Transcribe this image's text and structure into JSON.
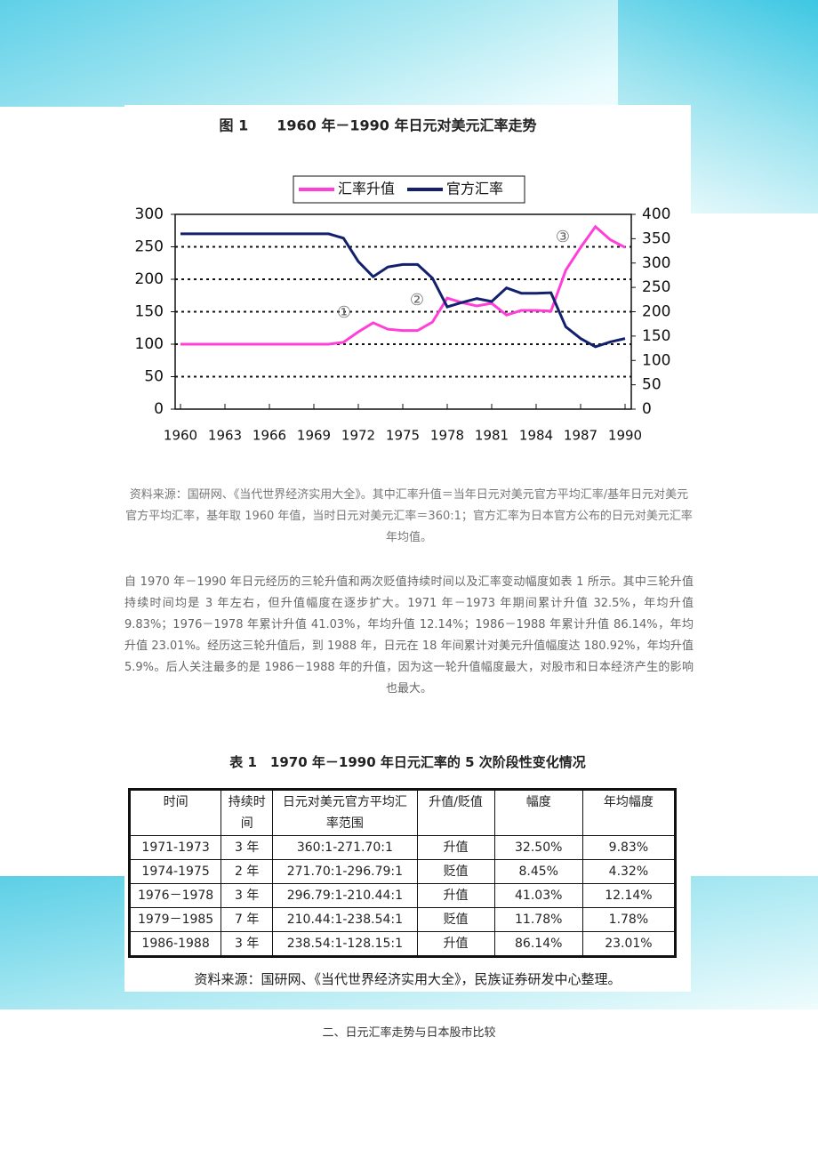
{
  "chart_data": {
    "type": "line",
    "title": "图 1　　1960 年－1990 年日元对美元汇率走势",
    "x": [
      1960,
      1961,
      1962,
      1963,
      1964,
      1965,
      1966,
      1967,
      1968,
      1969,
      1970,
      1971,
      1972,
      1973,
      1974,
      1975,
      1976,
      1977,
      1978,
      1979,
      1980,
      1981,
      1982,
      1983,
      1984,
      1985,
      1986,
      1987,
      1988,
      1989,
      1990
    ],
    "xlim": [
      1960,
      1990
    ],
    "xticks": [
      1960,
      1963,
      1966,
      1969,
      1972,
      1975,
      1978,
      1981,
      1984,
      1987,
      1990
    ],
    "ylim": [
      0,
      300
    ],
    "yticks": [
      0,
      50,
      100,
      150,
      200,
      250,
      300
    ],
    "y2lim": [
      0,
      400
    ],
    "y2ticks": [
      0,
      50,
      100,
      150,
      200,
      250,
      300,
      350,
      400
    ],
    "grid": true,
    "legend": "top",
    "series": [
      {
        "name": "汇率升值",
        "color": "#ff3fd8",
        "values": [
          100,
          100,
          100,
          100,
          100,
          100,
          100,
          100,
          100,
          100,
          100,
          103,
          119,
          133,
          123,
          121,
          121,
          134,
          171,
          164,
          159,
          163,
          145,
          152,
          152,
          151,
          214,
          249,
          281,
          261,
          249
        ]
      },
      {
        "name": "官方汇率",
        "color": "#13206e",
        "axis": "y2",
        "values": [
          360,
          360,
          360,
          360,
          360,
          360,
          360,
          360,
          360,
          360,
          360,
          351,
          303,
          272,
          292,
          297,
          297,
          269,
          210,
          219,
          227,
          221,
          249,
          238,
          238,
          239,
          169,
          145,
          128,
          138,
          145
        ]
      }
    ],
    "annotations": [
      "①",
      "②",
      "③"
    ]
  },
  "caption": "资料来源：国研网、《当代世界经济实用大全》。其中汇率升值＝当年日元对美元官方平均汇率/基年日元对美元官方平均汇率，基年取 1960 年值，当时日元对美元汇率＝360:1；官方汇率为日本官方公布的日元对美元汇率年均值。",
  "paragraph": "自 1970 年－1990 年日元经历的三轮升值和两次贬值持续时间以及汇率变动幅度如表 1 所示。其中三轮升值持续时间均是 3 年左右，但升值幅度在逐步扩大。1971 年－1973 年期间累计升值 32.5%，年均升值 9.83%；1976－1978 年累计升值 41.03%，年均升值 12.14%；1986－1988 年累计升值 86.14%，年均升值 23.01%。经历这三轮升值后，到 1988 年，日元在 18 年间累计对美元升值幅度达 180.92%，年均升值 5.9%。后人关注最多的是 1986－1988 年的升值，因为这一轮升值幅度最大，对股市和日本经济产生的影响也最大。",
  "table": {
    "title": "表 1　1970 年－1990 年日元汇率的 5 次阶段性变化情况",
    "header": [
      "时间",
      "持续时间",
      "日元对美元官方平均汇率范围",
      "升值/贬值",
      "幅度",
      "年均幅度"
    ],
    "rows": [
      [
        "1971-1973",
        "3 年",
        "360:1-271.70:1",
        "升值",
        "32.50%",
        "9.83%"
      ],
      [
        "1974-1975",
        "2 年",
        "271.70:1-296.79:1",
        "贬值",
        "8.45%",
        "4.32%"
      ],
      [
        "1976－1978",
        "3 年",
        "296.79:1-210.44:1",
        "升值",
        "41.03%",
        "12.14%"
      ],
      [
        "1979－1985",
        "7 年",
        "210.44:1-238.54:1",
        "贬值",
        "11.78%",
        "1.78%"
      ],
      [
        "1986-1988",
        "3 年",
        "238.54:1-128.15:1",
        "升值",
        "86.14%",
        "23.01%"
      ]
    ],
    "source": "资料来源：国研网、《当代世界经济实用大全》，民族证券研发中心整理。"
  },
  "section_heading": "二、日元汇率走势与日本股市比较"
}
